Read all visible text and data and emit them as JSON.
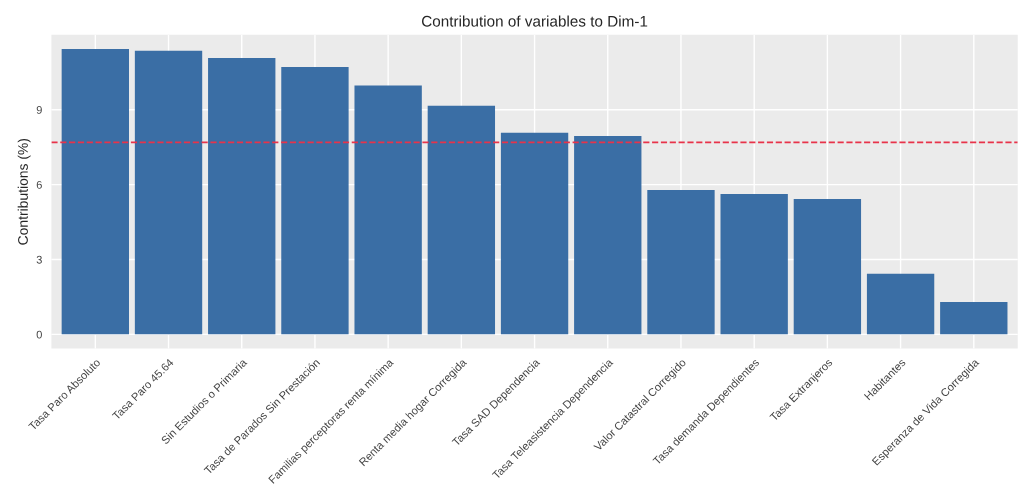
{
  "chart_data": {
    "type": "bar",
    "title": "Contribution of variables to Dim-1",
    "ylabel": "Contributions (%)",
    "categories": [
      "Tasa Paro Absoluto",
      "Tasa Paro 45.64",
      "Sin Estudios o Primaria",
      "Tasa de Parados Sin Prestación",
      "Familias perceptoras renta mínima",
      "Renta media hogar Corregida",
      "Tasa SAD Dependencia",
      "Tasa Teleasistencia Dependencia",
      "Valor Catastral Corregido",
      "Tasa demanda Dependientes",
      "Tasa Extranjeros",
      "Habitantes",
      "Esperanza de Vida Corregida"
    ],
    "values": [
      11.43,
      11.36,
      11.07,
      10.71,
      9.97,
      9.16,
      8.08,
      7.95,
      5.78,
      5.62,
      5.42,
      2.43,
      1.3
    ],
    "color": "#3a6ea5",
    "ylim": [
      -0.57,
      12.0
    ],
    "yticks": [
      0,
      3,
      6,
      9
    ],
    "grid": true,
    "ref_lines": [
      {
        "axis": "y",
        "value": 7.69,
        "color": "#e8334a",
        "line_style": "dashed"
      }
    ]
  }
}
